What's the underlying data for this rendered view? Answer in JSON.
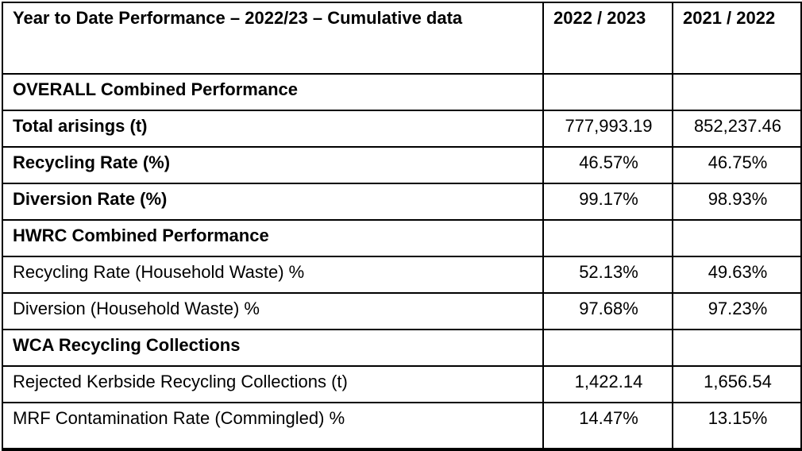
{
  "table": {
    "title": "Year to Date Performance – 2022/23 – Cumulative data",
    "columns": [
      "2022 / 2023",
      "2021 / 2022"
    ],
    "rows": [
      {
        "label": "OVERALL Combined Performance",
        "bold": true,
        "section": true,
        "values": [
          "",
          ""
        ]
      },
      {
        "label": "Total arisings (t)",
        "bold": true,
        "section": false,
        "values": [
          "777,993.19",
          "852,237.46"
        ]
      },
      {
        "label": "Recycling Rate (%)",
        "bold": true,
        "section": false,
        "values": [
          "46.57%",
          "46.75%"
        ]
      },
      {
        "label": "Diversion Rate (%)",
        "bold": true,
        "section": false,
        "values": [
          "99.17%",
          "98.93%"
        ]
      },
      {
        "label": "HWRC Combined Performance",
        "bold": true,
        "section": true,
        "values": [
          "",
          ""
        ]
      },
      {
        "label": "Recycling Rate (Household Waste) %",
        "bold": false,
        "section": false,
        "values": [
          "52.13%",
          "49.63%"
        ]
      },
      {
        "label": "Diversion (Household Waste) %",
        "bold": false,
        "section": false,
        "values": [
          "97.68%",
          "97.23%"
        ]
      },
      {
        "label": "WCA Recycling Collections",
        "bold": true,
        "section": true,
        "values": [
          "",
          ""
        ]
      },
      {
        "label": "Rejected Kerbside Recycling Collections (t)",
        "bold": false,
        "section": false,
        "values": [
          "1,422.14",
          "1,656.54"
        ]
      },
      {
        "label": "MRF Contamination Rate (Commingled) %",
        "bold": false,
        "section": false,
        "values": [
          "14.47%",
          "13.15%"
        ]
      }
    ],
    "colors": {
      "border": "#000000",
      "text": "#000000",
      "background": "#ffffff"
    }
  }
}
